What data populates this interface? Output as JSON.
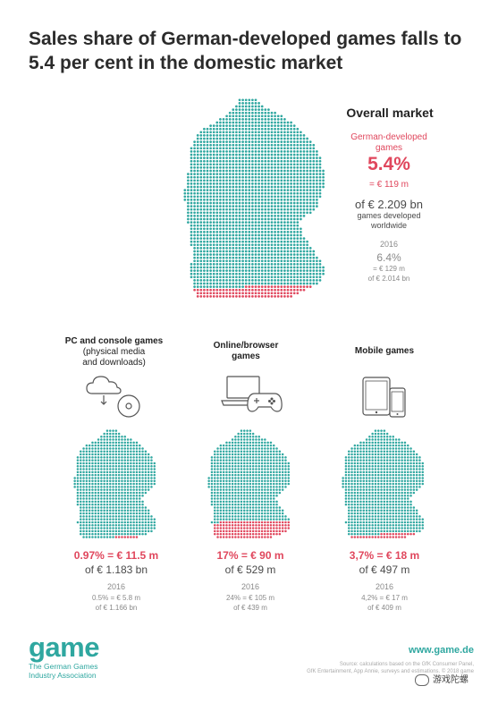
{
  "title": "Sales share of German-developed games falls to 5.4 per cent in the domestic market",
  "colors": {
    "teal": "#2fa7a0",
    "red": "#e0475d",
    "grey": "#8a8a8a"
  },
  "chart_data": [
    {
      "type": "pictogram-map",
      "title": "Overall market",
      "label": "German-developed games",
      "share_percent": 5.4,
      "share_text": "5.4%",
      "value_text": "= € 119 m",
      "total_text": "of € 2.209 bn",
      "note": "games developed worldwide",
      "previous": {
        "year": "2016",
        "share_text": "6.4%",
        "value_text": "= € 129 m",
        "total_text": "of € 2.014 bn"
      }
    },
    {
      "type": "pictogram-map",
      "title_line1": "PC and console games",
      "title_line2": "(physical media",
      "title_line3": "and downloads)",
      "share_percent": 0.97,
      "share_text": "0.97% = € 11.5 m",
      "total_text": "of € 1.183 bn",
      "previous": {
        "year": "2016",
        "share_text": "0.5% = € 5.8 m",
        "total_text": "of € 1.166 bn"
      }
    },
    {
      "type": "pictogram-map",
      "title_line1": "Online/browser",
      "title_line2": "games",
      "share_percent": 17,
      "share_text": "17% = € 90 m",
      "total_text": "of € 529 m",
      "previous": {
        "year": "2016",
        "share_text": "24% = € 105 m",
        "total_text": "of € 439 m"
      }
    },
    {
      "type": "pictogram-map",
      "title_line1": "Mobile games",
      "share_percent": 3.7,
      "share_text": "3,7% = € 18 m",
      "total_text": "of € 497 m",
      "previous": {
        "year": "2016",
        "share_text": "4,2% = € 17 m",
        "total_text": "of € 409 m"
      }
    }
  ],
  "icons": [
    "cloud-download-icon",
    "disc-icon",
    "laptop-icon",
    "gamepad-icon",
    "tablet-icon",
    "phone-icon"
  ],
  "footer": {
    "logo": "game",
    "logo_sub_line1": "The German Games",
    "logo_sub_line2": "Industry Association",
    "website": "www.game.de",
    "source_line1": "Source: calculations based on the GfK Consumer Panel,",
    "source_line2": "GfK Entertainment, App Annie, surveys and estimations. © 2018 game",
    "watermark": "游戏陀螺"
  }
}
